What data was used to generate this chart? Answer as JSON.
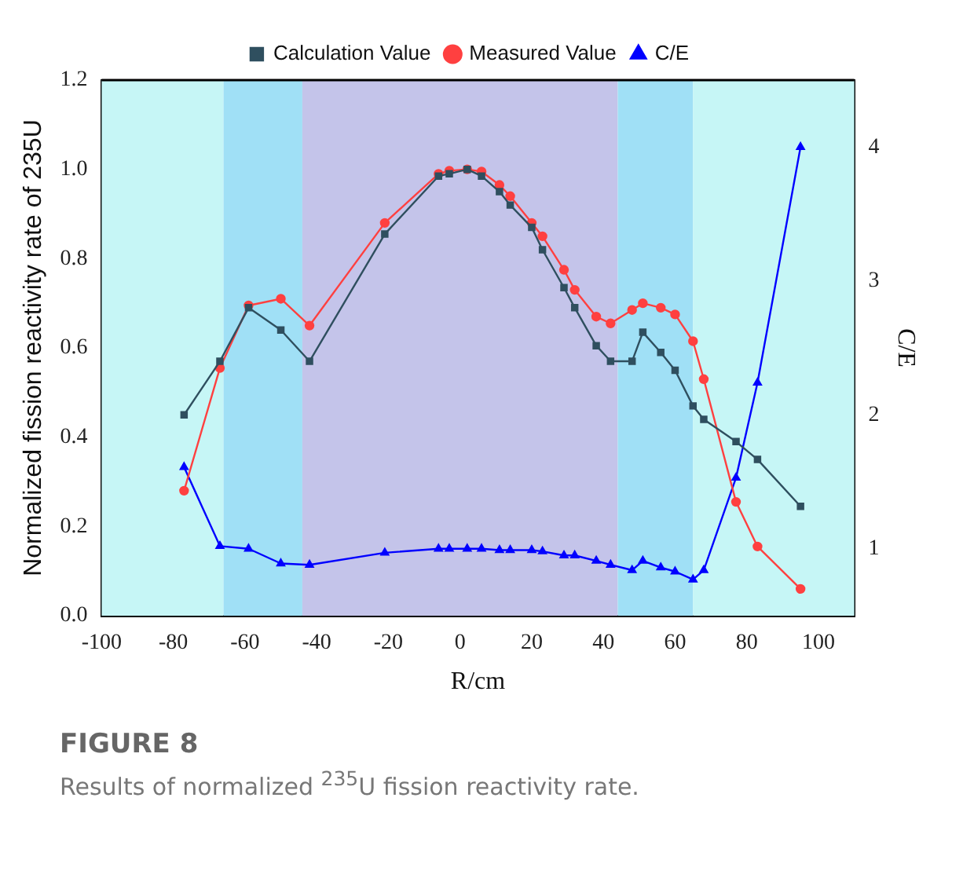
{
  "chart_data": {
    "type": "line",
    "xlabel": "R/cm",
    "ylabel": "Normalized fission reactivity rate of 235U",
    "y2label": "C/E",
    "xlim": [
      -100,
      110
    ],
    "xticks": [
      -100,
      -80,
      -60,
      -40,
      -20,
      0,
      20,
      40,
      60,
      80,
      100
    ],
    "ylim": [
      0,
      1.2
    ],
    "yticks": [
      {
        "value": 0,
        "label": "0.0"
      },
      {
        "value": 0.2,
        "label": "0.2"
      },
      {
        "value": 0.4,
        "label": "0.4"
      },
      {
        "value": 0.6,
        "label": "0.6"
      },
      {
        "value": 0.8,
        "label": "0.8"
      },
      {
        "value": 1.0,
        "label": "1.0"
      },
      {
        "value": 1.2,
        "label": "1.2"
      }
    ],
    "y2lim": [
      0.5,
      4.5
    ],
    "y2ticks": [
      1,
      2,
      3,
      4
    ],
    "grid": false,
    "legend": "top",
    "line_style": "solid",
    "x": [
      -77,
      -67,
      -59,
      -50,
      -42,
      -21,
      -6,
      -3,
      2,
      6,
      11,
      14,
      20,
      23,
      29,
      32,
      38,
      42,
      48,
      51,
      56,
      60,
      65,
      68,
      77,
      83,
      95
    ],
    "series": [
      {
        "name": "Calculation Value",
        "color": "#2f4f5f",
        "marker": "square",
        "values": [
          0.45,
          0.57,
          0.69,
          0.64,
          0.57,
          0.855,
          0.985,
          0.99,
          1.0,
          0.985,
          0.95,
          0.92,
          0.87,
          0.82,
          0.735,
          0.69,
          0.605,
          0.57,
          0.57,
          0.635,
          0.59,
          0.55,
          0.47,
          0.44,
          0.39,
          0.35,
          0.245
        ]
      },
      {
        "name": "Measured Value",
        "color": "#ff4040",
        "marker": "circle",
        "values": [
          0.28,
          0.555,
          0.695,
          0.71,
          0.65,
          0.88,
          0.99,
          0.997,
          1.0,
          0.995,
          0.965,
          0.94,
          0.88,
          0.85,
          0.775,
          0.73,
          0.67,
          0.655,
          0.685,
          0.7,
          0.69,
          0.675,
          0.615,
          0.53,
          0.255,
          0.155,
          0.06
        ]
      },
      {
        "name": "C/E",
        "color": "#0000ff",
        "marker": "triangle",
        "axis": "y2",
        "values": [
          1.61,
          1.02,
          1.0,
          0.89,
          0.88,
          0.97,
          1.0,
          1.0,
          1.0,
          1.0,
          0.99,
          0.99,
          0.99,
          0.98,
          0.95,
          0.95,
          0.91,
          0.88,
          0.84,
          0.91,
          0.86,
          0.83,
          0.77,
          0.84,
          1.53,
          2.24,
          4.0
        ]
      }
    ],
    "bands": [
      {
        "axis": "x",
        "from": -100,
        "to": -66,
        "color": "#c6f6f6"
      },
      {
        "axis": "x",
        "from": -66,
        "to": -44,
        "color": "#a0e0f6"
      },
      {
        "axis": "x",
        "from": -44,
        "to": 44,
        "color": "#c4c4ea"
      },
      {
        "axis": "x",
        "from": 44,
        "to": 65,
        "color": "#a0e0f6"
      },
      {
        "axis": "x",
        "from": 65,
        "to": 110,
        "color": "#c6f6f6"
      }
    ],
    "annotations": [
      "FIGURE 8",
      "Results of normalized $^{235}$U fission reactivity rate."
    ]
  }
}
